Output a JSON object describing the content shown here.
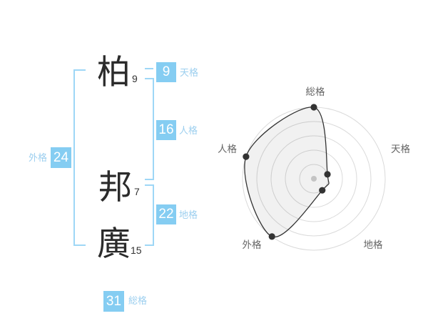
{
  "colors": {
    "accent_blue": "#85CDF2",
    "bracket_blue": "#9ED7F6",
    "label_blue": "#9CCFEF",
    "box_text": "#FFFFFF",
    "ink": "#2B2B2B",
    "chart_line": "#333333",
    "chart_grid": "#DADADA",
    "chart_label": "#666666",
    "chart_fill": "rgba(0,0,0,0.055)",
    "chart_center_dot": "#C4C4C4"
  },
  "name_panel": {
    "characters": [
      {
        "char": "柏",
        "strokes": "9"
      },
      {
        "char": "邦",
        "strokes": "7"
      },
      {
        "char": "廣",
        "strokes": "15"
      }
    ],
    "kaku": [
      {
        "label": "天格",
        "value": "9"
      },
      {
        "label": "人格",
        "value": "16"
      },
      {
        "label": "地格",
        "value": "22"
      },
      {
        "label": "外格",
        "value": "24"
      },
      {
        "label": "総格",
        "value": "31"
      }
    ]
  },
  "chart_data": {
    "type": "radar",
    "title": "",
    "categories": [
      "総格",
      "天格",
      "地格",
      "外格",
      "人格"
    ],
    "values": [
      100,
      20,
      20,
      100,
      100
    ],
    "max": 100,
    "rings": 5,
    "ring_step": 20,
    "start_angle_deg": 90,
    "direction": "clockwise",
    "grid": "concentric-circles",
    "axis_lines": false,
    "legend": false
  }
}
